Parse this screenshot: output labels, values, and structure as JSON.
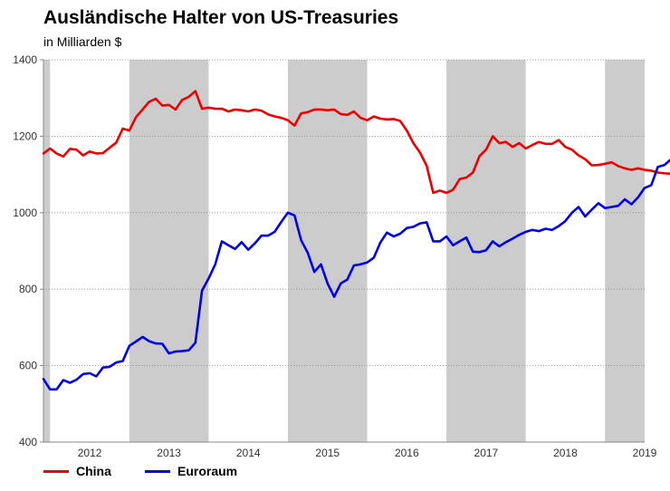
{
  "chart_data": {
    "type": "line",
    "title": "Ausländische Halter von US-Treasuries",
    "subtitle": "in Milliarden $",
    "xlabel": "",
    "ylabel": "",
    "ylim": [
      400,
      1400
    ],
    "yticks": [
      400,
      600,
      800,
      1000,
      1200,
      1400
    ],
    "x_start": "2011-12",
    "x_end": "2019-06",
    "year_labels": [
      "2012",
      "2013",
      "2014",
      "2015",
      "2016",
      "2017",
      "2018",
      "2019"
    ],
    "shaded_years": [
      "2011",
      "2013",
      "2015",
      "2017",
      "2019"
    ],
    "grid": true,
    "legend_position": "bottom-left",
    "series": [
      {
        "name": "China",
        "color": "#ee0000",
        "values": [
          1155,
          1168,
          1155,
          1147,
          1167,
          1165,
          1150,
          1160,
          1155,
          1156,
          1170,
          1183,
          1220,
          1215,
          1250,
          1270,
          1290,
          1298,
          1280,
          1282,
          1270,
          1295,
          1303,
          1318,
          1272,
          1275,
          1272,
          1272,
          1265,
          1270,
          1268,
          1265,
          1270,
          1267,
          1257,
          1252,
          1248,
          1242,
          1228,
          1260,
          1263,
          1270,
          1270,
          1268,
          1270,
          1258,
          1256,
          1265,
          1248,
          1242,
          1252,
          1246,
          1244,
          1245,
          1240,
          1215,
          1182,
          1157,
          1123,
          1052,
          1058,
          1052,
          1060,
          1088,
          1092,
          1105,
          1148,
          1165,
          1200,
          1182,
          1185,
          1172,
          1182,
          1168,
          1177,
          1185,
          1180,
          1180,
          1190,
          1172,
          1165,
          1150,
          1140,
          1124,
          1125,
          1128,
          1132,
          1122,
          1116,
          1112,
          1116,
          1112,
          1110,
          1105,
          1103,
          1102,
          1092
        ]
      },
      {
        "name": "Euroraum",
        "color": "#0000ee",
        "values": [
          565,
          538,
          538,
          562,
          555,
          563,
          578,
          580,
          572,
          595,
          597,
          608,
          612,
          652,
          663,
          675,
          664,
          658,
          657,
          632,
          637,
          638,
          640,
          660,
          796,
          828,
          865,
          925,
          915,
          905,
          923,
          903,
          920,
          940,
          940,
          950,
          976,
          1000,
          993,
          928,
          895,
          845,
          865,
          815,
          780,
          815,
          825,
          862,
          865,
          870,
          882,
          922,
          948,
          938,
          945,
          960,
          963,
          972,
          975,
          925,
          925,
          938,
          915,
          925,
          935,
          898,
          897,
          902,
          925,
          912,
          923,
          932,
          942,
          950,
          955,
          952,
          958,
          955,
          965,
          978,
          1000,
          1015,
          990,
          1008,
          1025,
          1012,
          1015,
          1018,
          1035,
          1022,
          1040,
          1065,
          1072,
          1120,
          1125,
          1140,
          1125
        ]
      }
    ]
  }
}
